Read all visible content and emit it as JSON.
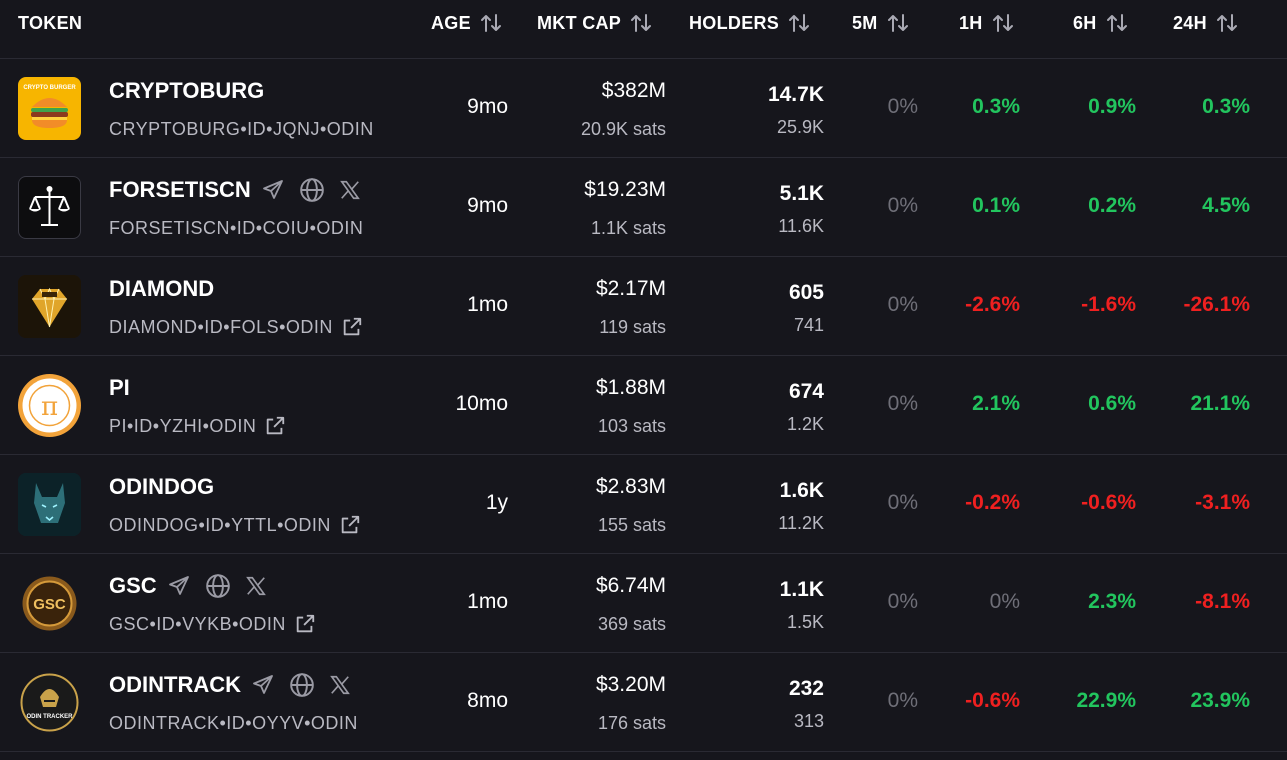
{
  "columns": {
    "token": "TOKEN",
    "age": "AGE",
    "mkt_cap": "MKT CAP",
    "holders": "HOLDERS",
    "m5": "5M",
    "h1": "1H",
    "h6": "6H",
    "h24": "24H"
  },
  "colors": {
    "positive": "#22c55e",
    "negative": "#ef2020",
    "neutral": "#6f6f78",
    "background": "#16161c"
  },
  "rows": [
    {
      "name": "CRYPTOBURG",
      "id": "CRYPTOBURG•ID•JQNJ•ODIN",
      "age": "9mo",
      "mcap": "$382M",
      "sats": "20.9K sats",
      "holders": "14.7K",
      "holders_sub": "25.9K",
      "m5": "0%",
      "h1": "0.3%",
      "h6": "0.9%",
      "h24": "0.3%",
      "h1_state": "pos",
      "h6_state": "pos",
      "h24_state": "pos",
      "has_social": false,
      "has_ext": false,
      "logo_text": "CRYPTO BURGER",
      "logo_icon": "burger-logo-icon"
    },
    {
      "name": "FORSETISCN",
      "id": "FORSETISCN•ID•COIU•ODIN",
      "age": "9mo",
      "mcap": "$19.23M",
      "sats": "1.1K sats",
      "holders": "5.1K",
      "holders_sub": "11.6K",
      "m5": "0%",
      "h1": "0.1%",
      "h6": "0.2%",
      "h24": "4.5%",
      "h1_state": "pos",
      "h6_state": "pos",
      "h24_state": "pos",
      "has_social": true,
      "has_ext": false,
      "logo_icon": "scales-logo-icon"
    },
    {
      "name": "DIAMOND",
      "id": "DIAMOND•ID•FOLS•ODIN",
      "age": "1mo",
      "mcap": "$2.17M",
      "sats": "119 sats",
      "holders": "605",
      "holders_sub": "741",
      "m5": "0%",
      "h1": "-2.6%",
      "h6": "-1.6%",
      "h24": "-26.1%",
      "h1_state": "neg",
      "h6_state": "neg",
      "h24_state": "neg",
      "has_social": false,
      "has_ext": true,
      "logo_icon": "diamond-logo-icon"
    },
    {
      "name": "PI",
      "id": "PI•ID•YZHI•ODIN",
      "age": "10mo",
      "mcap": "$1.88M",
      "sats": "103 sats",
      "holders": "674",
      "holders_sub": "1.2K",
      "m5": "0%",
      "h1": "2.1%",
      "h6": "0.6%",
      "h24": "21.1%",
      "h1_state": "pos",
      "h6_state": "pos",
      "h24_state": "pos",
      "has_social": false,
      "has_ext": true,
      "logo_text": "π",
      "logo_icon": "pi-logo-icon"
    },
    {
      "name": "ODINDOG",
      "id": "ODINDOG•ID•YTTL•ODIN",
      "age": "1y",
      "mcap": "$2.83M",
      "sats": "155 sats",
      "holders": "1.6K",
      "holders_sub": "11.2K",
      "m5": "0%",
      "h1": "-0.2%",
      "h6": "-0.6%",
      "h24": "-3.1%",
      "h1_state": "neg",
      "h6_state": "neg",
      "h24_state": "neg",
      "has_social": false,
      "has_ext": true,
      "logo_icon": "wolf-logo-icon"
    },
    {
      "name": "GSC",
      "id": "GSC•ID•VYKB•ODIN",
      "age": "1mo",
      "mcap": "$6.74M",
      "sats": "369 sats",
      "holders": "1.1K",
      "holders_sub": "1.5K",
      "m5": "0%",
      "h1": "0%",
      "h6": "2.3%",
      "h24": "-8.1%",
      "h1_state": "neutral",
      "h6_state": "pos",
      "h24_state": "neg",
      "has_social": true,
      "has_ext": true,
      "logo_text": "GSC",
      "logo_icon": "gsc-coin-logo-icon"
    },
    {
      "name": "ODINTRACK",
      "id": "ODINTRACK•ID•OYYV•ODIN",
      "age": "8mo",
      "mcap": "$3.20M",
      "sats": "176 sats",
      "holders": "232",
      "holders_sub": "313",
      "m5": "0%",
      "h1": "-0.6%",
      "h6": "22.9%",
      "h24": "23.9%",
      "h1_state": "neg",
      "h6_state": "pos",
      "h24_state": "pos",
      "has_social": true,
      "has_ext": false,
      "logo_text": "ODIN TRACKER",
      "logo_icon": "odin-tracker-logo-icon"
    }
  ]
}
